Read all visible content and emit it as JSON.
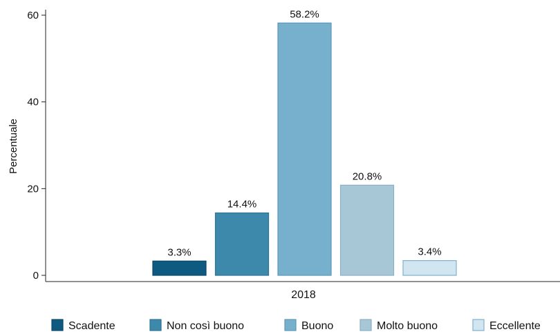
{
  "chart_data": {
    "type": "bar",
    "title": "",
    "xlabel": "",
    "ylabel": "Percentuale",
    "ylim": [
      0,
      62
    ],
    "yticks": [
      0,
      20,
      40,
      60
    ],
    "categories": [
      "2018"
    ],
    "grid": false,
    "legend_position": "bottom",
    "series": [
      {
        "name": "Scadente",
        "values": [
          3.3
        ],
        "label": "3.3%",
        "color": "#0e5a80",
        "stroke": "#0a4866"
      },
      {
        "name": "Non così buono",
        "values": [
          14.4
        ],
        "label": "14.4%",
        "color": "#3d89ab",
        "stroke": "#2f7294"
      },
      {
        "name": "Buono",
        "values": [
          58.2
        ],
        "label": "58.2%",
        "color": "#77b0cd",
        "stroke": "#5c98b8"
      },
      {
        "name": "Molto buono",
        "values": [
          20.8
        ],
        "label": "20.8%",
        "color": "#a8c7d6",
        "stroke": "#8cafc2"
      },
      {
        "name": "Eccellente",
        "values": [
          3.4
        ],
        "label": "3.4%",
        "color": "#d2e6f2",
        "stroke": "#7fb0cc"
      }
    ]
  }
}
